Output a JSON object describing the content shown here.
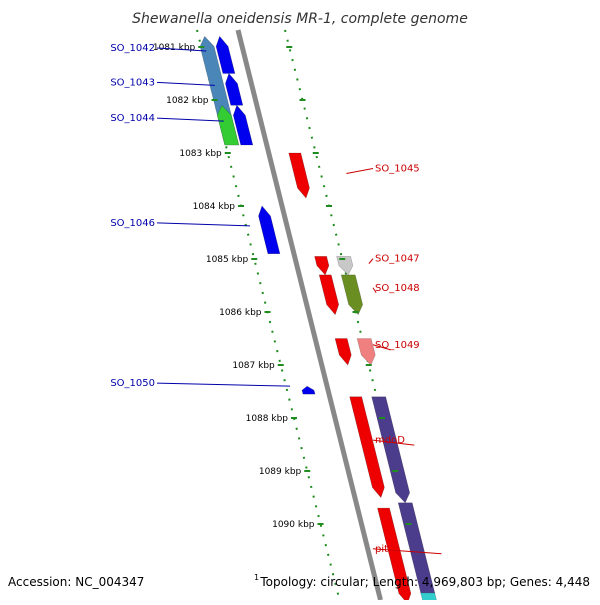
{
  "title": "Shewanella oneidensis MR-1, complete genome",
  "footer": {
    "accession": "Accession: NC_004347",
    "topology_prefix": "1",
    "topology": "Topology: circular; Length: 4,969,803 bp; Genes: 4,448"
  },
  "colors": {
    "backbone": "#888888",
    "dotted_track": "#1e8c1e",
    "left_label": "#0000aa",
    "right_label": "#cc0000",
    "background": "#ffffff"
  },
  "ticks": [
    {
      "label": "1081 kbp",
      "kbp": 1081
    },
    {
      "label": "1082 kbp",
      "kbp": 1082
    },
    {
      "label": "1083 kbp",
      "kbp": 1083
    },
    {
      "label": "1084 kbp",
      "kbp": 1084
    },
    {
      "label": "1085 kbp",
      "kbp": 1085
    },
    {
      "label": "1086 kbp",
      "kbp": 1086
    },
    {
      "label": "1087 kbp",
      "kbp": 1087
    },
    {
      "label": "1088 kbp",
      "kbp": 1088
    },
    {
      "label": "1089 kbp",
      "kbp": 1089
    },
    {
      "label": "1090 kbp",
      "kbp": 1090
    }
  ],
  "genes": [
    {
      "name": "SO_1042",
      "strand": "minus",
      "start_kbp": 1080.8,
      "end_kbp": 1081.5,
      "color": "#0000ee",
      "side": "left"
    },
    {
      "name": "SO_1043",
      "strand": "minus",
      "start_kbp": 1081.5,
      "end_kbp": 1082.1,
      "color": "#0000ee",
      "side": "left"
    },
    {
      "name": "SO_1044",
      "strand": "minus",
      "start_kbp": 1082.1,
      "end_kbp": 1082.85,
      "color": "#0000ee",
      "side": "left"
    },
    {
      "name": "SO_1045",
      "strand": "plus",
      "start_kbp": 1083.0,
      "end_kbp": 1083.85,
      "color": "#ee0000",
      "side": "right"
    },
    {
      "name": "SO_1046",
      "strand": "minus",
      "start_kbp": 1084.0,
      "end_kbp": 1084.9,
      "color": "#0000ee",
      "side": "left"
    },
    {
      "name": "SO_1047",
      "strand": "plus",
      "start_kbp": 1084.95,
      "end_kbp": 1085.3,
      "color": "#ee0000",
      "side": "right"
    },
    {
      "name": "SO_1048",
      "strand": "plus",
      "start_kbp": 1085.3,
      "end_kbp": 1086.05,
      "color": "#ee0000",
      "side": "right"
    },
    {
      "name": "SO_1049",
      "strand": "plus",
      "start_kbp": 1086.5,
      "end_kbp": 1087.0,
      "color": "#ee0000",
      "side": "right"
    },
    {
      "name": "SO_1050",
      "strand": "minus",
      "start_kbp": 1087.4,
      "end_kbp": 1087.55,
      "color": "#0000ee",
      "side": "left"
    },
    {
      "name": "mdoD",
      "strand": "plus",
      "start_kbp": 1087.6,
      "end_kbp": 1089.5,
      "color": "#ee0000",
      "side": "right"
    },
    {
      "name": "pit",
      "strand": "plus",
      "start_kbp": 1089.7,
      "end_kbp": 1091.5,
      "color": "#ee0000",
      "side": "right"
    }
  ],
  "features": [
    {
      "strand": "minus",
      "start_kbp": 1080.8,
      "end_kbp": 1082.85,
      "color": "#4a86b8"
    },
    {
      "strand": "minus",
      "start_kbp": 1082.1,
      "end_kbp": 1082.85,
      "color": "#33cc33"
    },
    {
      "strand": "plus",
      "start_kbp": 1084.95,
      "end_kbp": 1085.3,
      "color": "#c8c8c8"
    },
    {
      "strand": "plus",
      "start_kbp": 1085.3,
      "end_kbp": 1086.05,
      "color": "#6b8e23"
    },
    {
      "strand": "plus",
      "start_kbp": 1086.5,
      "end_kbp": 1087.0,
      "color": "#f08080"
    },
    {
      "strand": "plus",
      "start_kbp": 1087.6,
      "end_kbp": 1089.6,
      "color": "#4b3c8c"
    },
    {
      "strand": "plus",
      "start_kbp": 1089.6,
      "end_kbp": 1091.5,
      "color": "#4b3c8c"
    },
    {
      "strand": "plus",
      "start_kbp": 1091.3,
      "end_kbp": 1091.6,
      "color": "#33cccc"
    }
  ]
}
